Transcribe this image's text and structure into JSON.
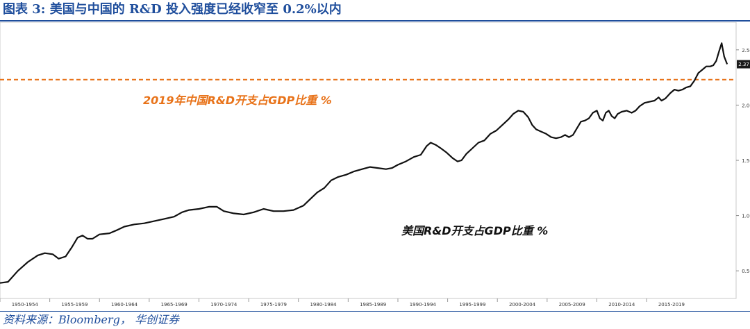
{
  "header": {
    "title": "图表 3: 美国与中国的 R&D 投入强度已经收窄至 0.2%以内"
  },
  "footer": {
    "source": "资料来源：Bloomberg，  华创证券"
  },
  "colors": {
    "title": "#1f4e9c",
    "us_line": "#111111",
    "china_line": "#e8731a",
    "china_label": "#e8731a"
  },
  "chart_data": {
    "type": "line",
    "xlim": [
      1950,
      2024
    ],
    "ylim": [
      0.25,
      2.75
    ],
    "x_ticks": [
      "1950-1954",
      "1955-1959",
      "1960-1964",
      "1965-1969",
      "1970-1974",
      "1975-1979",
      "1980-1984",
      "1985-1989",
      "1990-1994",
      "1995-1999",
      "2000-2004",
      "2005-2009",
      "2010-2014",
      "2015-2019"
    ],
    "y_ticks": [
      "0.50",
      "1.00",
      "1.50",
      "2.00",
      "2.50"
    ],
    "last_value_label": "2.37",
    "series": [
      {
        "name": "美国R&D开支占GDP比重 %",
        "style": "solid",
        "points": [
          [
            1950.0,
            0.39
          ],
          [
            1950.8,
            0.4
          ],
          [
            1951.8,
            0.5
          ],
          [
            1952.8,
            0.58
          ],
          [
            1953.8,
            0.64
          ],
          [
            1954.5,
            0.66
          ],
          [
            1955.3,
            0.65
          ],
          [
            1955.9,
            0.61
          ],
          [
            1956.6,
            0.63
          ],
          [
            1957.2,
            0.71
          ],
          [
            1957.8,
            0.8
          ],
          [
            1958.3,
            0.82
          ],
          [
            1958.8,
            0.79
          ],
          [
            1959.3,
            0.79
          ],
          [
            1960.0,
            0.83
          ],
          [
            1961.0,
            0.84
          ],
          [
            1961.8,
            0.87
          ],
          [
            1962.5,
            0.9
          ],
          [
            1963.5,
            0.92
          ],
          [
            1964.5,
            0.93
          ],
          [
            1965.5,
            0.95
          ],
          [
            1966.5,
            0.97
          ],
          [
            1967.5,
            0.99
          ],
          [
            1968.3,
            1.03
          ],
          [
            1969.0,
            1.05
          ],
          [
            1970.0,
            1.06
          ],
          [
            1971.0,
            1.08
          ],
          [
            1971.8,
            1.08
          ],
          [
            1972.5,
            1.04
          ],
          [
            1973.5,
            1.02
          ],
          [
            1974.5,
            1.01
          ],
          [
            1975.5,
            1.03
          ],
          [
            1976.5,
            1.06
          ],
          [
            1977.5,
            1.04
          ],
          [
            1978.5,
            1.04
          ],
          [
            1979.5,
            1.05
          ],
          [
            1980.5,
            1.09
          ],
          [
            1981.2,
            1.15
          ],
          [
            1981.9,
            1.21
          ],
          [
            1982.6,
            1.25
          ],
          [
            1983.3,
            1.32
          ],
          [
            1984.0,
            1.35
          ],
          [
            1984.8,
            1.37
          ],
          [
            1985.6,
            1.4
          ],
          [
            1986.4,
            1.42
          ],
          [
            1987.2,
            1.44
          ],
          [
            1988.0,
            1.43
          ],
          [
            1988.8,
            1.42
          ],
          [
            1989.4,
            1.43
          ],
          [
            1990.0,
            1.46
          ],
          [
            1990.8,
            1.49
          ],
          [
            1991.6,
            1.53
          ],
          [
            1992.3,
            1.55
          ],
          [
            1992.9,
            1.63
          ],
          [
            1993.3,
            1.66
          ],
          [
            1993.8,
            1.64
          ],
          [
            1994.3,
            1.61
          ],
          [
            1994.9,
            1.57
          ],
          [
            1995.5,
            1.52
          ],
          [
            1996.0,
            1.49
          ],
          [
            1996.4,
            1.5
          ],
          [
            1996.9,
            1.56
          ],
          [
            1997.5,
            1.61
          ],
          [
            1998.1,
            1.66
          ],
          [
            1998.7,
            1.68
          ],
          [
            1999.3,
            1.74
          ],
          [
            1999.9,
            1.77
          ],
          [
            2000.5,
            1.82
          ],
          [
            2001.1,
            1.87
          ],
          [
            2001.6,
            1.92
          ],
          [
            2002.1,
            1.95
          ],
          [
            2002.6,
            1.94
          ],
          [
            2003.1,
            1.89
          ],
          [
            2003.5,
            1.82
          ],
          [
            2003.9,
            1.78
          ],
          [
            2004.4,
            1.76
          ],
          [
            2004.9,
            1.74
          ],
          [
            2005.4,
            1.71
          ],
          [
            2005.9,
            1.7
          ],
          [
            2006.4,
            1.71
          ],
          [
            2006.8,
            1.73
          ],
          [
            2007.2,
            1.71
          ],
          [
            2007.6,
            1.73
          ],
          [
            2008.0,
            1.79
          ],
          [
            2008.4,
            1.85
          ],
          [
            2008.8,
            1.86
          ],
          [
            2009.2,
            1.88
          ],
          [
            2009.6,
            1.93
          ],
          [
            2010.0,
            1.95
          ],
          [
            2010.3,
            1.88
          ],
          [
            2010.6,
            1.86
          ],
          [
            2010.9,
            1.93
          ],
          [
            2011.2,
            1.95
          ],
          [
            2011.5,
            1.9
          ],
          [
            2011.8,
            1.88
          ],
          [
            2012.1,
            1.92
          ],
          [
            2012.5,
            1.94
          ],
          [
            2013.0,
            1.95
          ],
          [
            2013.5,
            1.93
          ],
          [
            2013.9,
            1.95
          ],
          [
            2014.3,
            1.99
          ],
          [
            2014.8,
            2.02
          ],
          [
            2015.3,
            2.03
          ],
          [
            2015.8,
            2.04
          ],
          [
            2016.2,
            2.07
          ],
          [
            2016.5,
            2.04
          ],
          [
            2016.9,
            2.06
          ],
          [
            2017.4,
            2.11
          ],
          [
            2017.8,
            2.14
          ],
          [
            2018.2,
            2.13
          ],
          [
            2018.6,
            2.14
          ],
          [
            2019.0,
            2.16
          ],
          [
            2019.4,
            2.17
          ],
          [
            2019.8,
            2.22
          ],
          [
            2020.2,
            2.29
          ],
          [
            2020.6,
            2.32
          ],
          [
            2021.0,
            2.35
          ],
          [
            2021.4,
            2.35
          ],
          [
            2021.7,
            2.36
          ],
          [
            2022.0,
            2.4
          ],
          [
            2022.3,
            2.49
          ],
          [
            2022.55,
            2.56
          ],
          [
            2022.8,
            2.44
          ],
          [
            2023.1,
            2.37
          ]
        ]
      },
      {
        "name": "2019年中国R&D开支占GDP比重 %",
        "style": "dashed",
        "value": 2.23
      }
    ],
    "annotations": {
      "china": "2019年中国R&D开支占GDP比重 %",
      "us": "美国R&D开支占GDP比重 %"
    }
  }
}
